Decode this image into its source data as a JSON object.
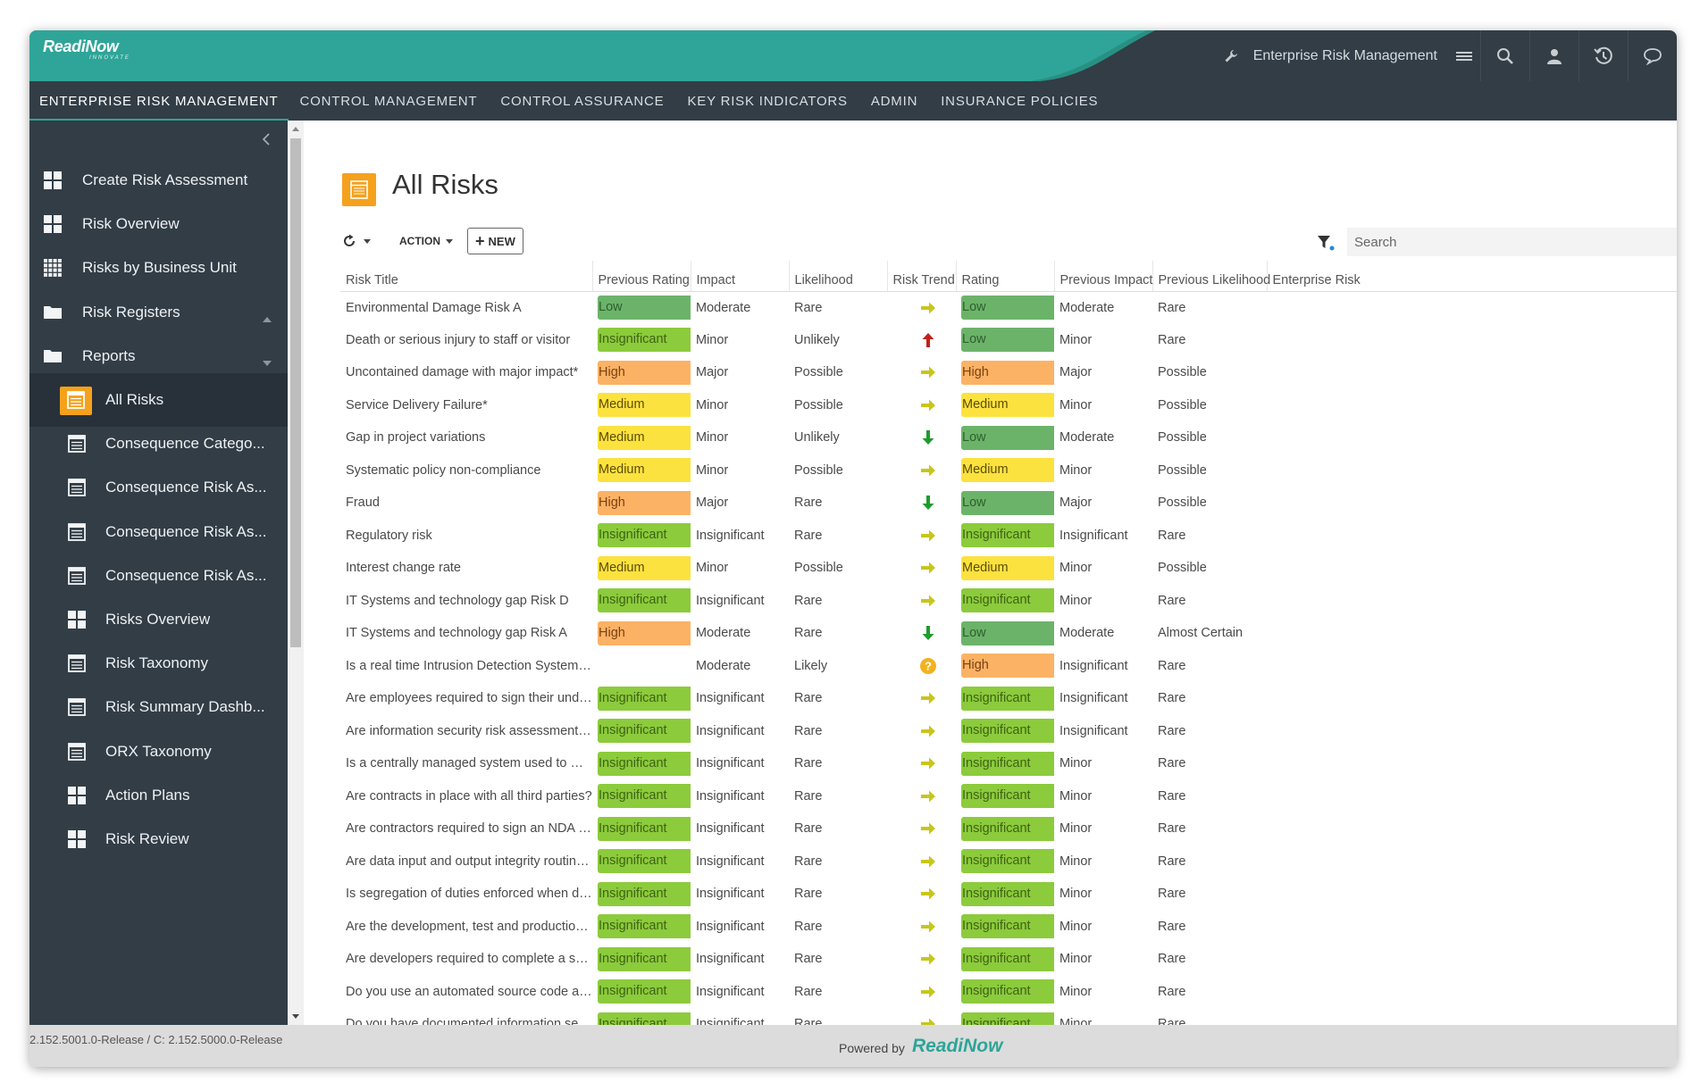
{
  "brand": {
    "name": "ReadiNow",
    "tagline": "INNOVATE",
    "accent": "#2ea598",
    "dark": "#323d46"
  },
  "header": {
    "app_title": "Enterprise Risk Management",
    "icons": [
      "wrench-icon",
      "menu-icon",
      "search-icon",
      "user-icon",
      "history-icon",
      "chat-icon"
    ]
  },
  "tabs": [
    {
      "label": "ENTERPRISE RISK MANAGEMENT",
      "active": true
    },
    {
      "label": "CONTROL MANAGEMENT"
    },
    {
      "label": "CONTROL ASSURANCE"
    },
    {
      "label": "KEY RISK INDICATORS"
    },
    {
      "label": "ADMIN"
    },
    {
      "label": "INSURANCE POLICIES"
    }
  ],
  "sidebar": {
    "items": [
      {
        "label": "Create Risk Assessment",
        "icon": "grid-icon"
      },
      {
        "label": "Risk Overview",
        "icon": "grid-icon"
      },
      {
        "label": "Risks by Business Unit",
        "icon": "grid-small-icon"
      },
      {
        "label": "Risk Registers",
        "icon": "folder-icon",
        "caret": "up"
      },
      {
        "label": "Reports",
        "icon": "folder-icon",
        "caret": "down"
      },
      {
        "label": "All Risks",
        "icon": "report-icon",
        "active": true
      },
      {
        "label": "Consequence Catego...",
        "icon": "report-icon"
      },
      {
        "label": "Consequence Risk As...",
        "icon": "report-icon"
      },
      {
        "label": "Consequence Risk As...",
        "icon": "report-icon"
      },
      {
        "label": "Consequence Risk As...",
        "icon": "report-icon"
      },
      {
        "label": "Risks Overview",
        "icon": "grid-icon"
      },
      {
        "label": "Risk Taxonomy",
        "icon": "report-icon"
      },
      {
        "label": "Risk Summary Dashb...",
        "icon": "report-icon"
      },
      {
        "label": "ORX Taxonomy",
        "icon": "report-icon"
      },
      {
        "label": "Action Plans",
        "icon": "grid-icon"
      },
      {
        "label": "Risk Review",
        "icon": "grid-icon"
      }
    ]
  },
  "page": {
    "title": "All Risks",
    "toolbar": {
      "action_label": "ACTION",
      "new_label": "NEW"
    },
    "search": {
      "placeholder": "Search",
      "value": ""
    }
  },
  "table": {
    "columns": [
      "Risk Title",
      "Previous Rating",
      "Impact",
      "Likelihood",
      "Risk Trend",
      "Rating",
      "Previous Impact",
      "Previous Likelihood",
      "Enterprise Risk"
    ],
    "rows": [
      {
        "title": "Environmental Damage Risk A",
        "prev_rating": "Low",
        "impact": "Moderate",
        "likelihood": "Rare",
        "trend": "right",
        "rating": "Low",
        "prev_impact": "Moderate",
        "prev_likelihood": "Rare",
        "enterprise": ""
      },
      {
        "title": "Death or serious injury to staff or visitor",
        "prev_rating": "Insignificant",
        "impact": "Minor",
        "likelihood": "Unlikely",
        "trend": "up",
        "rating": "Low",
        "prev_impact": "Minor",
        "prev_likelihood": "Rare",
        "enterprise": ""
      },
      {
        "title": "Uncontained damage with major impact*",
        "prev_rating": "High",
        "impact": "Major",
        "likelihood": "Possible",
        "trend": "right",
        "rating": "High",
        "prev_impact": "Major",
        "prev_likelihood": "Possible",
        "enterprise": ""
      },
      {
        "title": "Service Delivery Failure*",
        "prev_rating": "Medium",
        "impact": "Minor",
        "likelihood": "Possible",
        "trend": "right",
        "rating": "Medium",
        "prev_impact": "Minor",
        "prev_likelihood": "Possible",
        "enterprise": ""
      },
      {
        "title": "Gap in project variations",
        "prev_rating": "Medium",
        "impact": "Minor",
        "likelihood": "Unlikely",
        "trend": "down",
        "rating": "Low",
        "prev_impact": "Moderate",
        "prev_likelihood": "Possible",
        "enterprise": ""
      },
      {
        "title": "Systematic policy non-compliance",
        "prev_rating": "Medium",
        "impact": "Minor",
        "likelihood": "Possible",
        "trend": "right",
        "rating": "Medium",
        "prev_impact": "Minor",
        "prev_likelihood": "Possible",
        "enterprise": ""
      },
      {
        "title": "Fraud",
        "prev_rating": "High",
        "impact": "Major",
        "likelihood": "Rare",
        "trend": "down",
        "rating": "Low",
        "prev_impact": "Major",
        "prev_likelihood": "Possible",
        "enterprise": ""
      },
      {
        "title": "Regulatory risk",
        "prev_rating": "Insignificant",
        "impact": "Insignificant",
        "likelihood": "Rare",
        "trend": "right",
        "rating": "Insignificant",
        "prev_impact": "Insignificant",
        "prev_likelihood": "Rare",
        "enterprise": ""
      },
      {
        "title": "Interest change rate",
        "prev_rating": "Medium",
        "impact": "Minor",
        "likelihood": "Possible",
        "trend": "right",
        "rating": "Medium",
        "prev_impact": "Minor",
        "prev_likelihood": "Possible",
        "enterprise": ""
      },
      {
        "title": "IT Systems and technology gap Risk D",
        "prev_rating": "Insignificant",
        "impact": "Insignificant",
        "likelihood": "Rare",
        "trend": "right",
        "rating": "Insignificant",
        "prev_impact": "Minor",
        "prev_likelihood": "Rare",
        "enterprise": ""
      },
      {
        "title": "IT Systems and technology gap Risk A",
        "prev_rating": "High",
        "impact": "Moderate",
        "likelihood": "Rare",
        "trend": "down",
        "rating": "Low",
        "prev_impact": "Moderate",
        "prev_likelihood": "Almost Certain",
        "enterprise": ""
      },
      {
        "title": "Is a real time Intrusion Detection System (IDS) ...",
        "prev_rating": "",
        "impact": "Moderate",
        "likelihood": "Likely",
        "trend": "unknown",
        "rating": "High",
        "prev_impact": "Insignificant",
        "prev_likelihood": "Rare",
        "enterprise": ""
      },
      {
        "title": "Are employees required to sign their understa...",
        "prev_rating": "Insignificant",
        "impact": "Insignificant",
        "likelihood": "Rare",
        "trend": "right",
        "rating": "Insignificant",
        "prev_impact": "Insignificant",
        "prev_likelihood": "Rare",
        "enterprise": ""
      },
      {
        "title": "Are information security risk assessments con...",
        "prev_rating": "Insignificant",
        "impact": "Insignificant",
        "likelihood": "Rare",
        "trend": "right",
        "rating": "Insignificant",
        "prev_impact": "Insignificant",
        "prev_likelihood": "Rare",
        "enterprise": ""
      },
      {
        "title": "Is a centrally managed system used to manag...",
        "prev_rating": "Insignificant",
        "impact": "Insignificant",
        "likelihood": "Rare",
        "trend": "right",
        "rating": "Insignificant",
        "prev_impact": "Minor",
        "prev_likelihood": "Rare",
        "enterprise": ""
      },
      {
        "title": "Are contracts in place with all third parties?",
        "prev_rating": "Insignificant",
        "impact": "Insignificant",
        "likelihood": "Rare",
        "trend": "right",
        "rating": "Insignificant",
        "prev_impact": "Minor",
        "prev_likelihood": "Rare",
        "enterprise": ""
      },
      {
        "title": "Are contractors required to sign an NDA and/...",
        "prev_rating": "Insignificant",
        "impact": "Insignificant",
        "likelihood": "Rare",
        "trend": "right",
        "rating": "Insignificant",
        "prev_impact": "Minor",
        "prev_likelihood": "Rare",
        "enterprise": ""
      },
      {
        "title": "Are data input and output integrity routines (i....",
        "prev_rating": "Insignificant",
        "impact": "Insignificant",
        "likelihood": "Rare",
        "trend": "right",
        "rating": "Insignificant",
        "prev_impact": "Minor",
        "prev_likelihood": "Rare",
        "enterprise": ""
      },
      {
        "title": "Is segregation of duties enforced when develo...",
        "prev_rating": "Insignificant",
        "impact": "Insignificant",
        "likelihood": "Rare",
        "trend": "right",
        "rating": "Insignificant",
        "prev_impact": "Minor",
        "prev_likelihood": "Rare",
        "enterprise": ""
      },
      {
        "title": "Are the development, test and production env...",
        "prev_rating": "Insignificant",
        "impact": "Insignificant",
        "likelihood": "Rare",
        "trend": "right",
        "rating": "Insignificant",
        "prev_impact": "Minor",
        "prev_likelihood": "Rare",
        "enterprise": ""
      },
      {
        "title": "Are developers required to complete a secure ...",
        "prev_rating": "Insignificant",
        "impact": "Insignificant",
        "likelihood": "Rare",
        "trend": "right",
        "rating": "Insignificant",
        "prev_impact": "Minor",
        "prev_likelihood": "Rare",
        "enterprise": ""
      },
      {
        "title": "Do you use an automated source code analysi...",
        "prev_rating": "Insignificant",
        "impact": "Insignificant",
        "likelihood": "Rare",
        "trend": "right",
        "rating": "Insignificant",
        "prev_impact": "Minor",
        "prev_likelihood": "Rare",
        "enterprise": ""
      },
      {
        "title": "Do you have documented information securit...",
        "prev_rating": "Insignificant",
        "impact": "Insignificant",
        "likelihood": "Rare",
        "trend": "right",
        "rating": "Insignificant",
        "prev_impact": "Minor",
        "prev_likelihood": "Rare",
        "enterprise": ""
      }
    ]
  },
  "footer": {
    "version": "2.152.5001.0-Release / C: 2.152.5000.0-Release",
    "powered_by": "Powered by",
    "powered_logo": "ReadiNow"
  },
  "rating_colors": {
    "Low": "#6cb36a",
    "Insignificant": "#8ccb3c",
    "Medium": "#fce23e",
    "High": "#fbb265"
  },
  "trend_colors": {
    "right": "#c8c61a",
    "up": "#c0201a",
    "down": "#1e9c2c",
    "unknown": "#f2b220"
  }
}
